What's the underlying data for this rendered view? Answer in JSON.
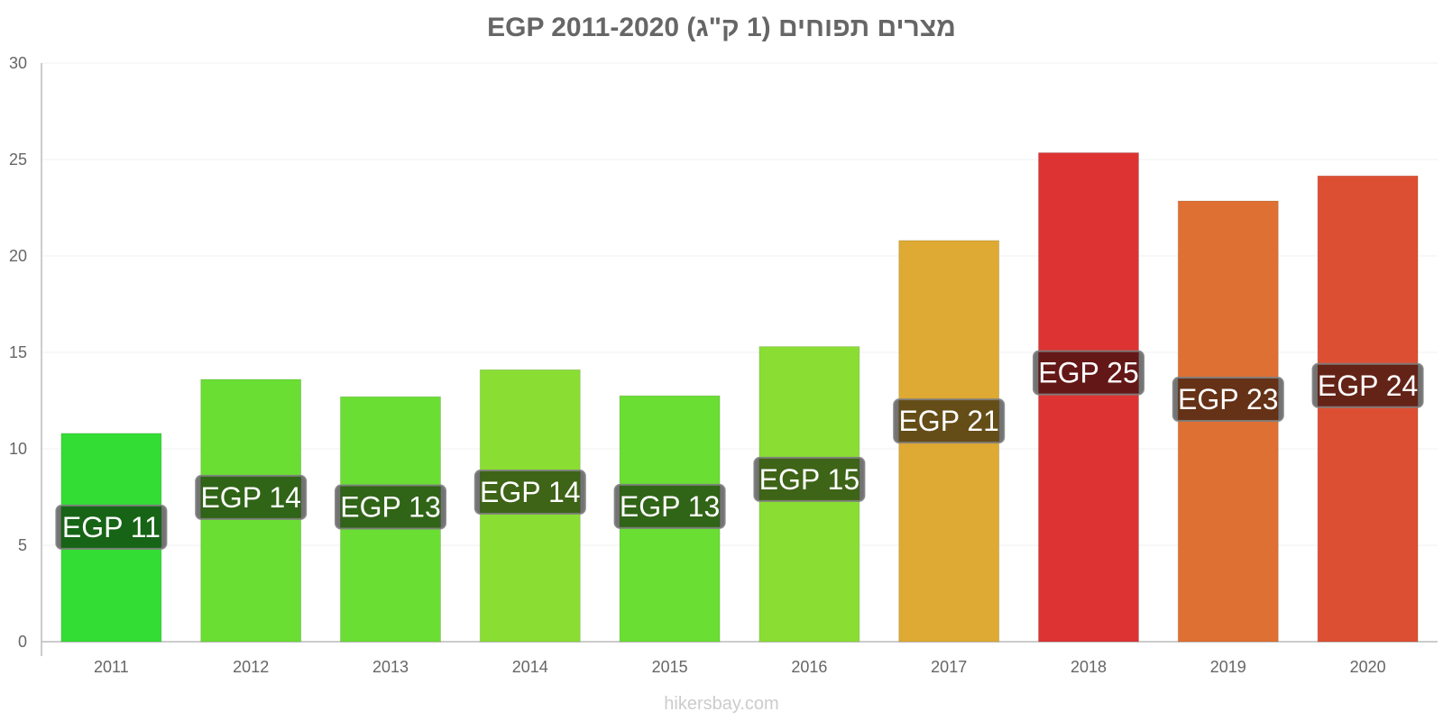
{
  "chart_data": {
    "type": "bar",
    "title": "מצרים תפוחים (1 ק\"ג) EGP 2011-2020",
    "xlabel": "",
    "ylabel": "",
    "ylim": [
      0,
      30
    ],
    "yticks": [
      0,
      5,
      10,
      15,
      20,
      25,
      30
    ],
    "categories": [
      "2011",
      "2012",
      "2013",
      "2014",
      "2015",
      "2016",
      "2017",
      "2018",
      "2019",
      "2020"
    ],
    "values": [
      10.8,
      13.6,
      12.7,
      14.1,
      12.75,
      15.3,
      20.8,
      25.35,
      22.85,
      24.15
    ],
    "data_labels": [
      "EGP 11",
      "EGP 14",
      "EGP 13",
      "EGP 14",
      "EGP 13",
      "EGP 15",
      "EGP 21",
      "EGP 25",
      "EGP 23",
      "EGP 24"
    ],
    "colors": [
      "#33dd33",
      "#6ade33",
      "#6ade33",
      "#8ade33",
      "#6ade33",
      "#8ade33",
      "#dfaa33",
      "#dd3333",
      "#df7033",
      "#dd4f33"
    ],
    "grid": true,
    "legend": "none"
  },
  "credit": "hikersbay.com"
}
